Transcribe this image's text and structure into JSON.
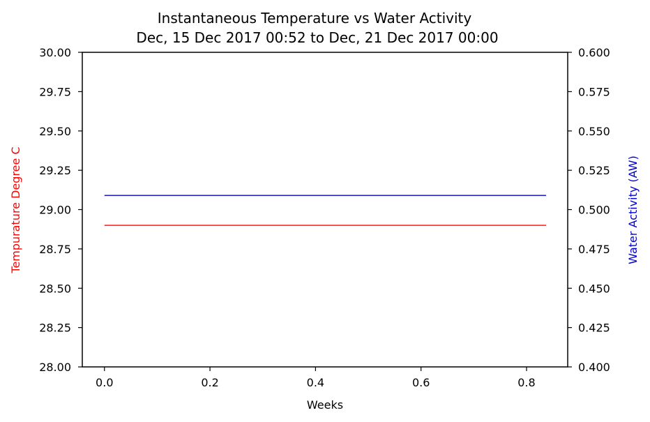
{
  "chart_data": {
    "type": "line",
    "title": "Instantaneous Temperature vs Water Activity",
    "subtitle": "Dec, 15 Dec 2017 00:52 to Dec, 21 Dec 2017 00:00",
    "xlabel": "Weeks",
    "ylabel_left": "Tempurature Degree C",
    "ylabel_right": "Water Activity (AW)",
    "xlim": [
      -0.042,
      0.878
    ],
    "ylim_left": [
      28.0,
      30.0
    ],
    "ylim_right": [
      0.4,
      0.6
    ],
    "x_ticks": [
      "0.0",
      "0.2",
      "0.4",
      "0.6",
      "0.8"
    ],
    "y_ticks_left": [
      "28.00",
      "28.25",
      "28.50",
      "28.75",
      "29.00",
      "29.25",
      "29.50",
      "29.75",
      "30.00"
    ],
    "y_ticks_right": [
      "0.400",
      "0.425",
      "0.450",
      "0.475",
      "0.500",
      "0.525",
      "0.550",
      "0.575",
      "0.600"
    ],
    "grid": false,
    "series": [
      {
        "axis": "left",
        "color": "#ff0000",
        "x": [
          0.0,
          0.837
        ],
        "y": [
          28.9,
          28.9
        ]
      },
      {
        "axis": "right",
        "color": "#0000cc",
        "x": [
          0.0,
          0.837
        ],
        "y": [
          0.509,
          0.509
        ]
      }
    ]
  }
}
